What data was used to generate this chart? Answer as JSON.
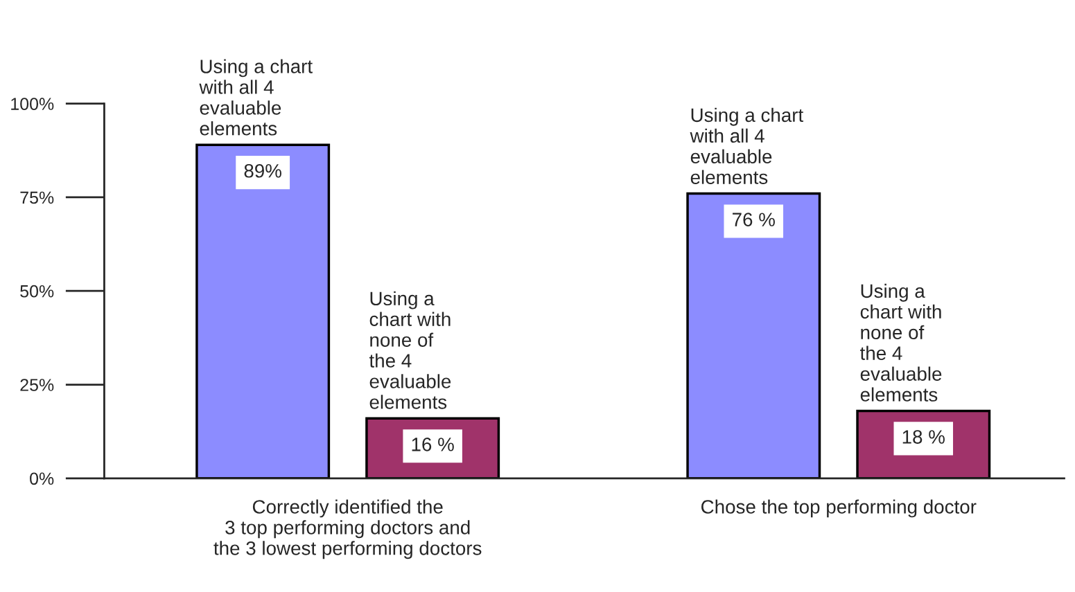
{
  "chart_data": {
    "type": "bar",
    "categories": [
      "Correctly identified the\n3 top performing doctors and\nthe 3 lowest performing doctors",
      "Chose the top performing doctor"
    ],
    "series": [
      {
        "name": "Using a chart\nwith all 4\nevaluable\nelements",
        "color": "#8c8cff",
        "values": [
          89,
          76
        ],
        "value_labels": [
          "89%",
          "76 %"
        ]
      },
      {
        "name": "Using a\nchart with\nnone of\nthe 4\nevaluable\nelements",
        "color": "#a0336a",
        "values": [
          16,
          18
        ],
        "value_labels": [
          "16 %",
          "18 %"
        ]
      }
    ],
    "ylim": [
      0,
      100
    ],
    "yticks": [
      {
        "value": 0,
        "label": "0%"
      },
      {
        "value": 25,
        "label": "25%"
      },
      {
        "value": 50,
        "label": "50%"
      },
      {
        "value": 75,
        "label": "75%"
      },
      {
        "value": 100,
        "label": "100%"
      }
    ],
    "grid": false
  }
}
